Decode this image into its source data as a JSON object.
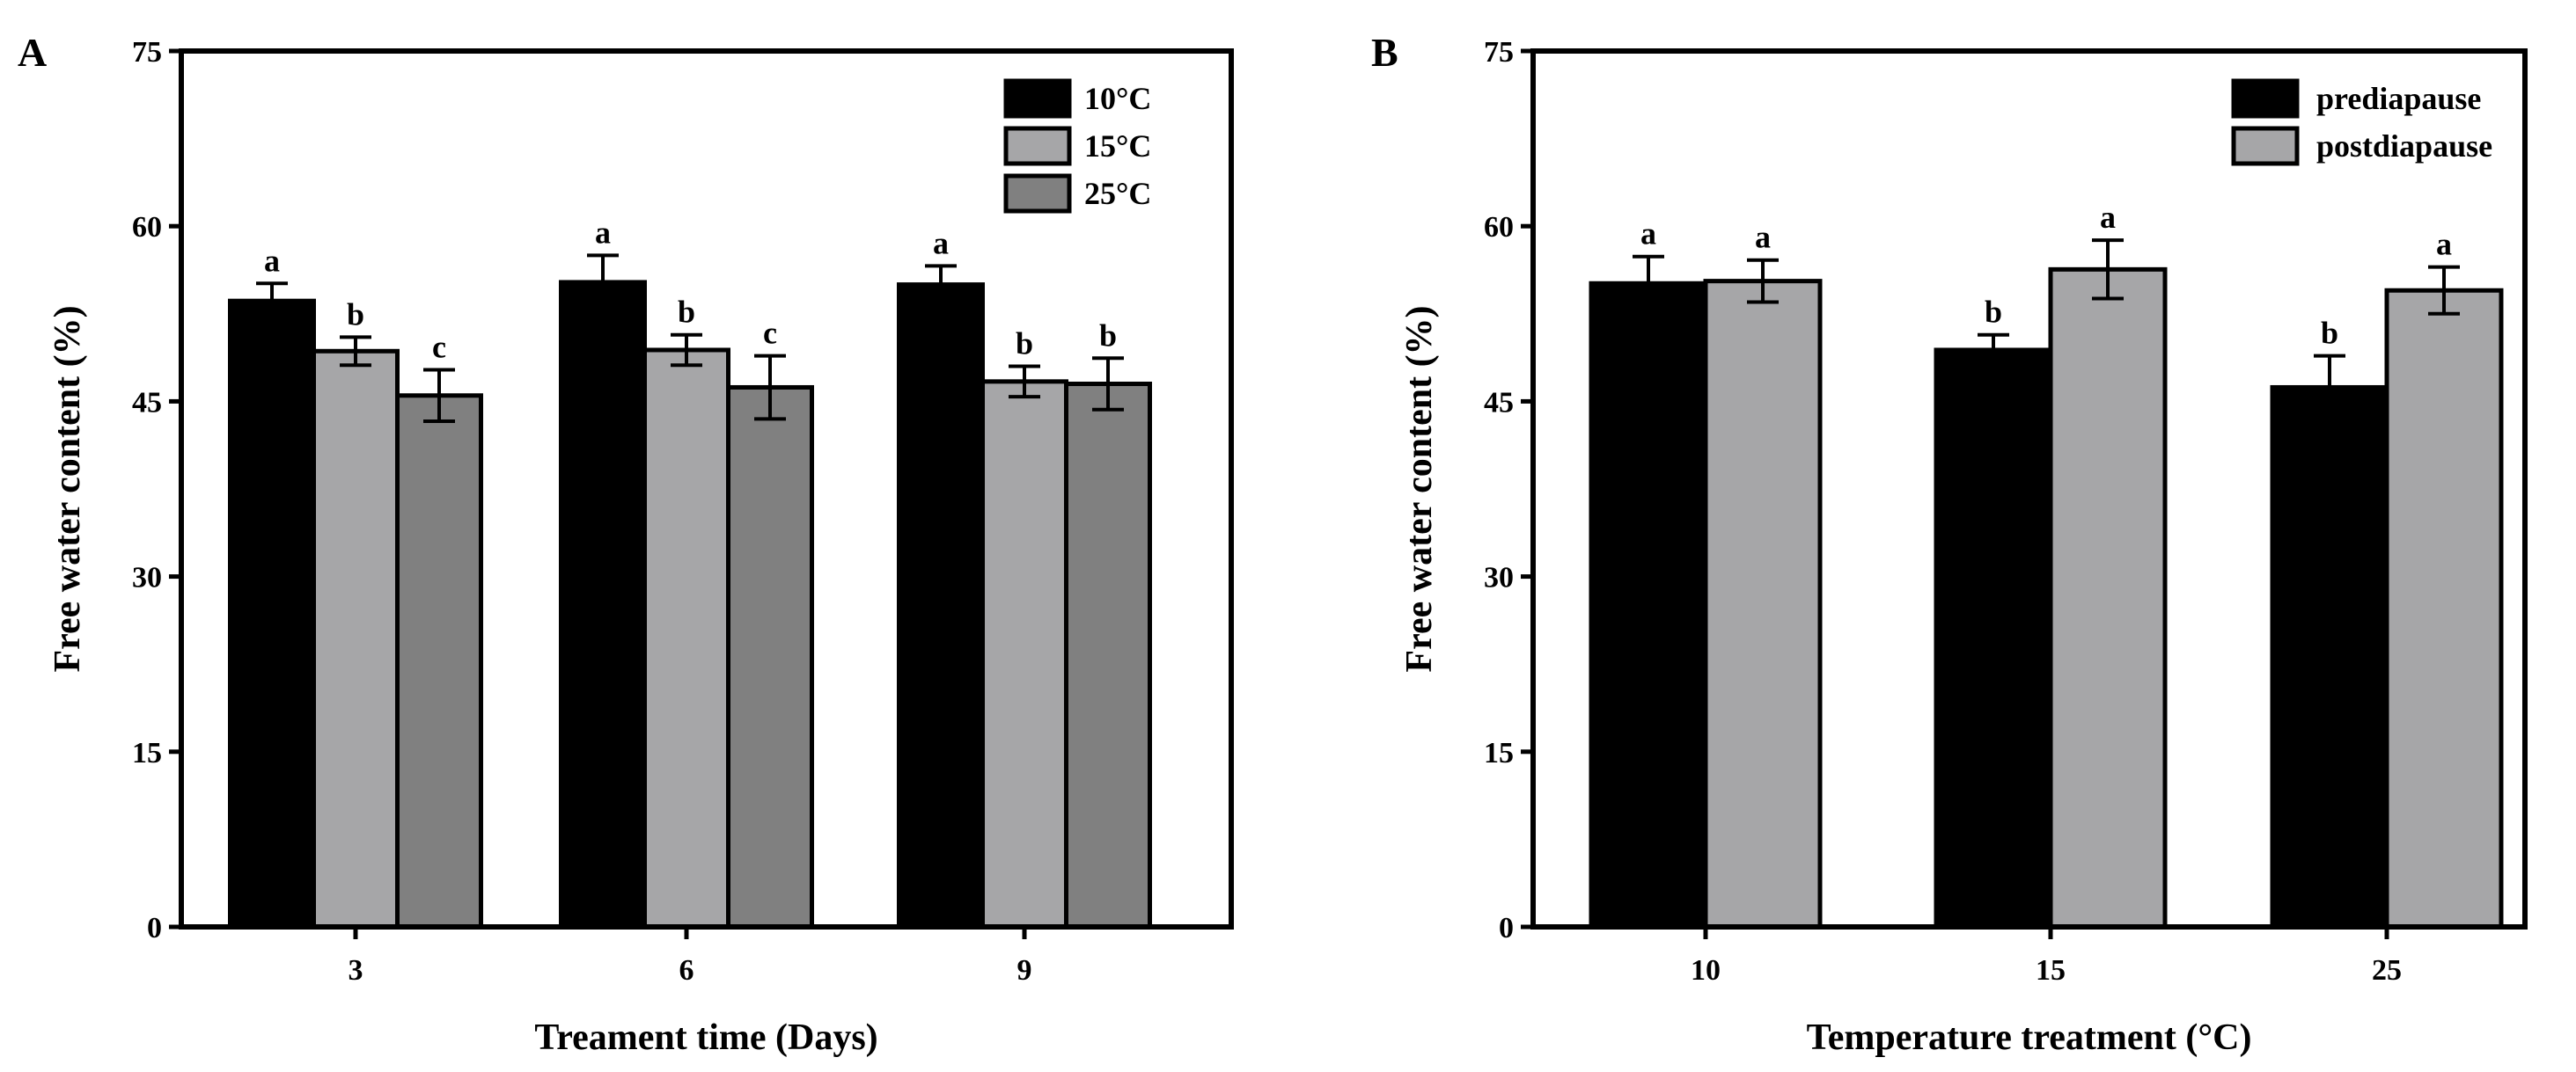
{
  "chart_data": [
    {
      "type": "bar",
      "panel_label": "A",
      "xlabel": "Treament time (Days)",
      "ylabel": "Free water content (%)",
      "ylim": [
        0,
        75
      ],
      "yticks": [
        "0",
        "15",
        "30",
        "45",
        "60",
        "75"
      ],
      "categories": [
        "3",
        "6",
        "9"
      ],
      "legend_position": "top-right",
      "series": [
        {
          "name": "10°C",
          "color": "#000000",
          "values": [
            53.6,
            55.2,
            55.0
          ],
          "errors": [
            1.5,
            2.3,
            1.6
          ],
          "labels": [
            "a",
            "a",
            "a"
          ]
        },
        {
          "name": "15°C",
          "color": "#a6a6a8",
          "values": [
            49.3,
            49.4,
            46.7
          ],
          "errors": [
            1.2,
            1.3,
            1.3
          ],
          "labels": [
            "b",
            "b",
            "b"
          ]
        },
        {
          "name": "25°C",
          "color": "#808080",
          "values": [
            45.5,
            46.2,
            46.5
          ],
          "errors": [
            2.2,
            2.7,
            2.2
          ],
          "labels": [
            "c",
            "c",
            "b"
          ]
        }
      ]
    },
    {
      "type": "bar",
      "panel_label": "B",
      "xlabel": "Temperature treatment (°C)",
      "ylabel": "Free water content (%)",
      "ylim": [
        0,
        75
      ],
      "yticks": [
        "0",
        "15",
        "30",
        "45",
        "60",
        "75"
      ],
      "categories": [
        "10",
        "15",
        "25"
      ],
      "legend_position": "top-right",
      "series": [
        {
          "name": "prediapause",
          "color": "#000000",
          "values": [
            55.1,
            49.4,
            46.2
          ],
          "errors": [
            2.3,
            1.3,
            2.7
          ],
          "labels": [
            "a",
            "b",
            "b"
          ]
        },
        {
          "name": "postdiapause",
          "color": "#a6a6a8",
          "values": [
            55.3,
            56.3,
            54.5
          ],
          "errors": [
            1.8,
            2.5,
            2.0
          ],
          "labels": [
            "a",
            "a",
            "a"
          ]
        }
      ]
    }
  ]
}
